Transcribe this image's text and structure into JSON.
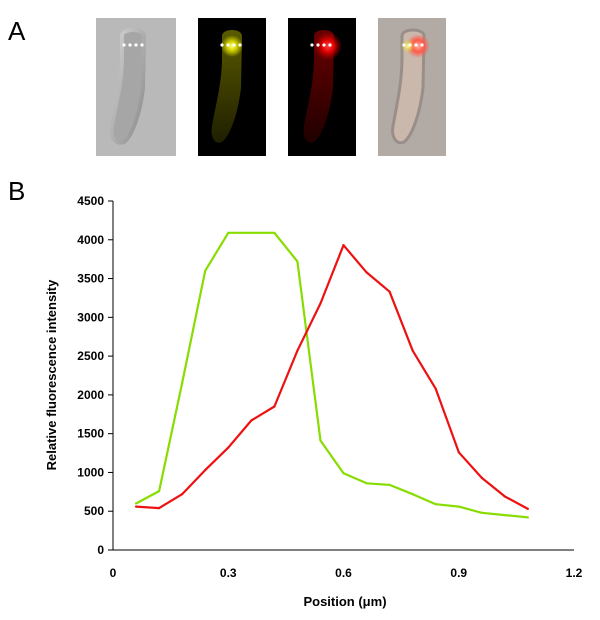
{
  "figure": {
    "panel_a_label": "A",
    "panel_b_label": "B"
  },
  "micrographs": [
    {
      "name": "bright-field",
      "tint": "#8f8f8f"
    },
    {
      "name": "yellow-fluorescence",
      "tint": "#d8d800"
    },
    {
      "name": "red-fluorescence",
      "tint": "#ff1a1a"
    },
    {
      "name": "merge",
      "tint": "#ff6060"
    }
  ],
  "chart_data": {
    "type": "line",
    "xlabel": "Position (μm)",
    "ylabel": "Relative fluorescence intensity",
    "xlim": [
      0,
      1.2
    ],
    "ylim": [
      0,
      4500
    ],
    "xticks": [
      0,
      0.3,
      0.6,
      0.9,
      1.2
    ],
    "xtick_labels": [
      "0",
      "0.3",
      "0.6",
      "0.9",
      "1.2"
    ],
    "yticks": [
      0,
      500,
      1000,
      1500,
      2000,
      2500,
      3000,
      3500,
      4000,
      4500
    ],
    "ytick_labels": [
      "0",
      "500",
      "1000",
      "1500",
      "2000",
      "2500",
      "3000",
      "3500",
      "4000",
      "4500"
    ],
    "grid": false,
    "legend": "none",
    "series": [
      {
        "color": "#88dd00",
        "x": [
          0.06,
          0.12,
          0.18,
          0.24,
          0.3,
          0.36,
          0.42,
          0.48,
          0.54,
          0.6,
          0.66,
          0.72,
          0.78,
          0.84,
          0.9,
          0.96,
          1.02,
          1.08
        ],
        "values": [
          600,
          760,
          2150,
          3600,
          4090,
          4090,
          4090,
          3720,
          1410,
          990,
          860,
          840,
          720,
          590,
          560,
          480,
          450,
          420
        ]
      },
      {
        "color": "#ee1111",
        "x": [
          0.06,
          0.12,
          0.18,
          0.24,
          0.3,
          0.36,
          0.42,
          0.48,
          0.54,
          0.6,
          0.66,
          0.72,
          0.78,
          0.84,
          0.9,
          0.96,
          1.02,
          1.08
        ],
        "values": [
          560,
          540,
          720,
          1030,
          1320,
          1670,
          1850,
          2570,
          3180,
          3930,
          3580,
          3330,
          2570,
          2080,
          1260,
          930,
          690,
          530
        ]
      }
    ]
  }
}
